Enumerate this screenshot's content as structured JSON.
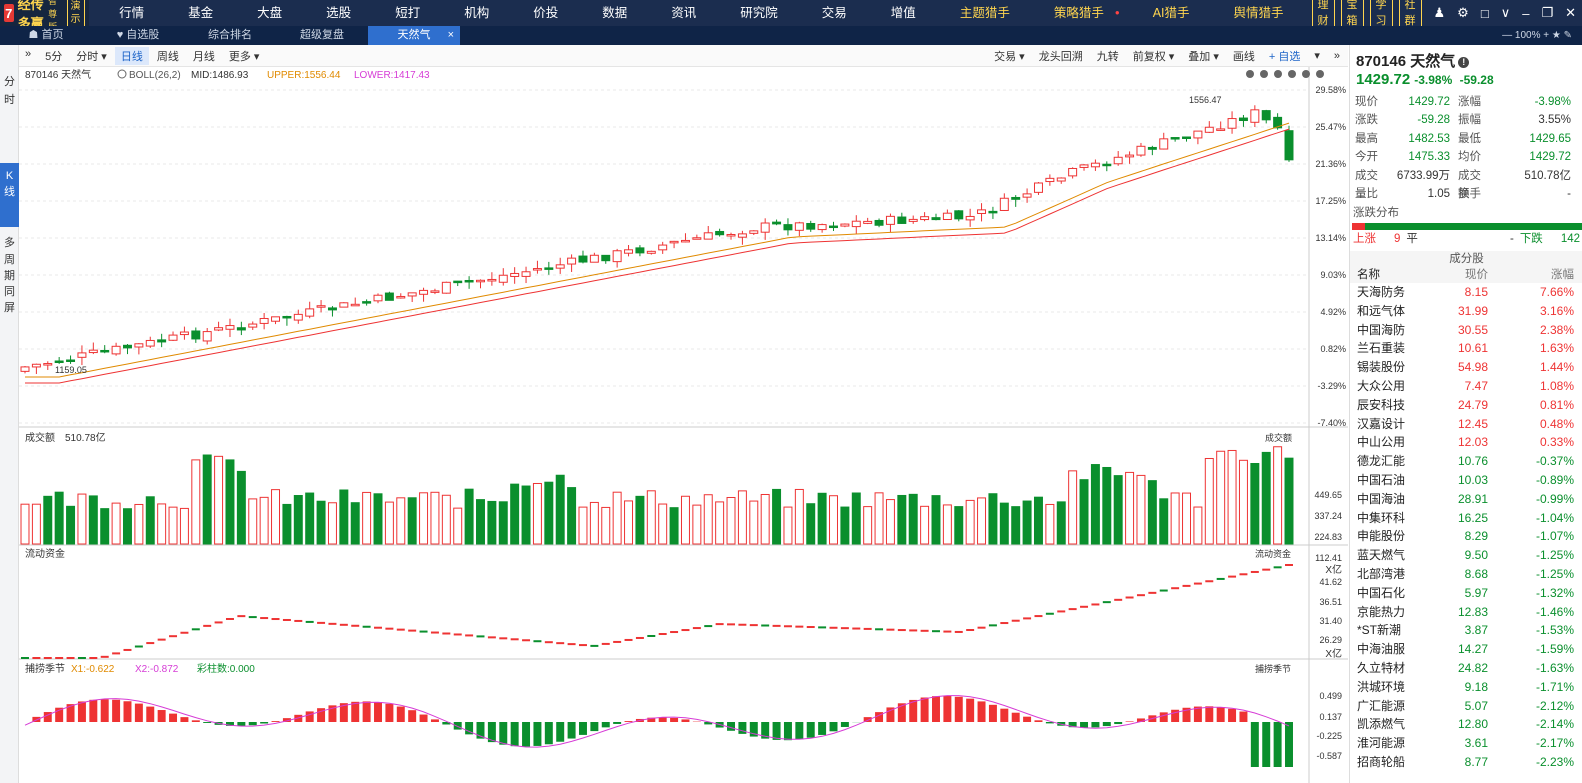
{
  "app": {
    "logo_mark": "7",
    "name": "经传多赢",
    "edition": "智尊版",
    "demo": "演示"
  },
  "nav": [
    {
      "label": "行情"
    },
    {
      "label": "基金"
    },
    {
      "label": "大盘"
    },
    {
      "label": "选股"
    },
    {
      "label": "短打"
    },
    {
      "label": "机构"
    },
    {
      "label": "价投"
    },
    {
      "label": "数据"
    },
    {
      "label": "资讯"
    },
    {
      "label": "研究院"
    },
    {
      "label": "交易"
    },
    {
      "label": "增值"
    },
    {
      "label": "主题猎手",
      "hl": true
    },
    {
      "label": "策略猎手",
      "hl": true,
      "dot": "●"
    },
    {
      "label": "AI猎手",
      "hl": true
    },
    {
      "label": "舆情猎手",
      "hl": true
    }
  ],
  "top_buttons": [
    "理财",
    "宝箱",
    "学习",
    "社群"
  ],
  "tabs": [
    {
      "label": "首页",
      "icon": "home-icon"
    },
    {
      "label": "自选股",
      "icon": "heart-icon"
    },
    {
      "label": "综合排名"
    },
    {
      "label": "超级复盘"
    },
    {
      "label": "天然气",
      "active": true,
      "close": "×"
    }
  ],
  "zoom": "100%",
  "left_side": [
    "分",
    "时",
    "K",
    "线",
    "多",
    "周",
    "期",
    "同",
    "屏"
  ],
  "toolbar": {
    "left": [
      "»",
      "5分",
      "分时 ▾",
      "日线",
      "周线",
      "月线",
      "更多 ▾"
    ],
    "active": "日线",
    "right": [
      "交易 ▾",
      "龙头回溯",
      "九转",
      "前复权 ▾",
      "叠加 ▾",
      "画线",
      "+ 自选",
      "▾",
      "»"
    ]
  },
  "stock": {
    "code": "870146",
    "name": "天然气",
    "price": "1429.72",
    "pct": "-3.98%",
    "chg": "-59.28"
  },
  "indicators": {
    "title": "870146 天然气",
    "boll": "BOLL(26,2)",
    "mid": "MID:1486.93",
    "upper": "UPPER:1556.44",
    "lower": "LOWER:1417.43"
  },
  "price_axis": [
    "29.58%",
    "25.47%",
    "21.36%",
    "17.25%",
    "13.14%",
    "9.03%",
    "4.92%",
    "0.82%",
    "-3.29%",
    "-7.40%"
  ],
  "annotations": {
    "high": "1556.47",
    "low": "1159.05"
  },
  "volume": {
    "label": "成交额",
    "value": "510.78亿",
    "ticks": [
      "449.65",
      "337.24",
      "224.83",
      "112.41"
    ],
    "unit": "X亿"
  },
  "flow": {
    "label": "流动资金",
    "ticks": [
      "41.62",
      "36.51",
      "31.40",
      "26.29"
    ],
    "unit": "X亿"
  },
  "season": {
    "label": "捕捞季节",
    "x1": "X1:-0.622",
    "x2": "X2:-0.872",
    "bars": "彩柱数:0.000",
    "ticks": [
      "0.499",
      "0.137",
      "-0.225",
      "-0.587"
    ]
  },
  "quote": [
    {
      "k": "现价",
      "v": "1429.72",
      "k2": "涨幅",
      "v2": "-3.98%",
      "c": "dn",
      "c2": "dn"
    },
    {
      "k": "涨跌",
      "v": "-59.28",
      "k2": "振幅",
      "v2": "3.55%",
      "c": "dn",
      "c2": ""
    },
    {
      "k": "最高",
      "v": "1482.53",
      "k2": "最低",
      "v2": "1429.65",
      "c": "dn",
      "c2": "dn"
    },
    {
      "k": "今开",
      "v": "1475.33",
      "k2": "均价",
      "v2": "1429.72",
      "c": "dn",
      "c2": "dn"
    },
    {
      "k": "成交量",
      "v": "6733.99万",
      "k2": "成交额",
      "v2": "510.78亿",
      "c": "",
      "c2": ""
    },
    {
      "k": "量比",
      "v": "1.05",
      "k2": "换手",
      "v2": "-",
      "c": "",
      "c2": ""
    }
  ],
  "distribution": {
    "title": "涨跌分布",
    "up_label": "上涨",
    "up": "9",
    "flat_label": "平",
    "flat": "-",
    "down_label": "下跌",
    "down": "142"
  },
  "components": {
    "title": "成分股",
    "headers": [
      "名称",
      "现价",
      "涨幅"
    ],
    "rows": [
      [
        "天海防务",
        "8.15",
        "7.66%"
      ],
      [
        "和远气体",
        "31.99",
        "3.16%"
      ],
      [
        "中国海防",
        "30.55",
        "2.38%"
      ],
      [
        "兰石重装",
        "10.61",
        "1.63%"
      ],
      [
        "锡装股份",
        "54.98",
        "1.44%"
      ],
      [
        "大众公用",
        "7.47",
        "1.08%"
      ],
      [
        "辰安科技",
        "24.79",
        "0.81%"
      ],
      [
        "汉嘉设计",
        "12.45",
        "0.48%"
      ],
      [
        "中山公用",
        "12.03",
        "0.33%"
      ],
      [
        "德龙汇能",
        "10.76",
        "-0.37%"
      ],
      [
        "中国石油",
        "10.03",
        "-0.89%"
      ],
      [
        "中国海油",
        "28.91",
        "-0.99%"
      ],
      [
        "中集环科",
        "16.25",
        "-1.04%"
      ],
      [
        "申能股份",
        "8.29",
        "-1.07%"
      ],
      [
        "蓝天燃气",
        "9.50",
        "-1.25%"
      ],
      [
        "北部湾港",
        "8.68",
        "-1.25%"
      ],
      [
        "中国石化",
        "5.97",
        "-1.32%"
      ],
      [
        "京能热力",
        "12.83",
        "-1.46%"
      ],
      [
        "*ST新潮",
        "3.87",
        "-1.53%"
      ],
      [
        "中海油服",
        "14.27",
        "-1.59%"
      ],
      [
        "久立特材",
        "24.82",
        "-1.63%"
      ],
      [
        "洪城环境",
        "9.18",
        "-1.71%"
      ],
      [
        "广汇能源",
        "5.07",
        "-2.12%"
      ],
      [
        "凯添燃气",
        "12.80",
        "-2.14%"
      ],
      [
        "淮河能源",
        "3.61",
        "-2.17%"
      ],
      [
        "招商轮船",
        "8.77",
        "-2.23%"
      ]
    ]
  }
}
